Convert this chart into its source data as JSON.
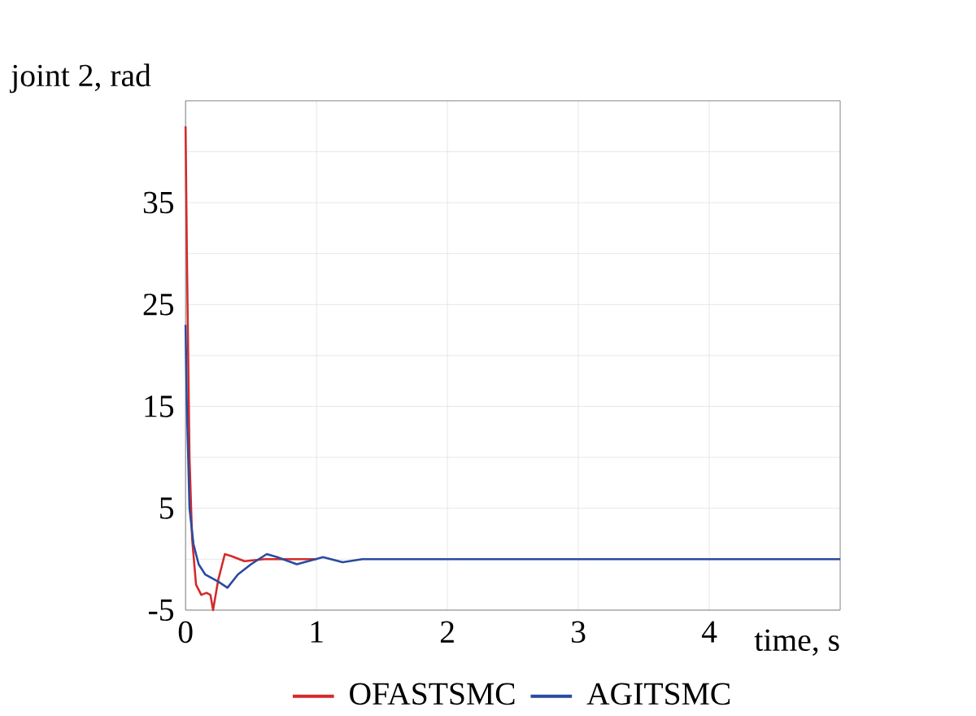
{
  "chart_data": {
    "type": "line",
    "xlabel": "time, s",
    "ylabel": "joint 2, rad",
    "xlim": [
      0,
      5
    ],
    "ylim": [
      -5,
      45
    ],
    "xticks": [
      0,
      1,
      2,
      3,
      4
    ],
    "yticks": [
      -5,
      {
        "value": 0,
        "label": null
      },
      5,
      {
        "value": 10,
        "label": null
      },
      15,
      {
        "value": 20,
        "label": null
      },
      25,
      {
        "value": 30,
        "label": null
      },
      35,
      {
        "value": 40,
        "label": null
      }
    ],
    "grid": true,
    "legend": "bottom",
    "line_style": "solid",
    "marker": "none",
    "series": [
      {
        "name": "OFASTSMC",
        "color": "#d42a2a",
        "x": [
          0,
          0.01,
          0.03,
          0.05,
          0.08,
          0.12,
          0.16,
          0.19,
          0.21,
          0.25,
          0.3,
          0.35,
          0.45,
          0.6,
          1
        ],
        "values": [
          42.5,
          30,
          10,
          2,
          -2.5,
          -3.5,
          -3.3,
          -3.5,
          -5,
          -2,
          0.5,
          0.3,
          -0.2,
          0,
          0
        ]
      },
      {
        "name": "AGITSMC",
        "color": "#2a4aa0",
        "x": [
          0,
          0.01,
          0.03,
          0.06,
          0.1,
          0.15,
          0.25,
          0.32,
          0.4,
          0.5,
          0.62,
          0.7,
          0.85,
          1.05,
          1.2,
          1.35,
          2,
          3,
          4,
          5
        ],
        "values": [
          23,
          15,
          5,
          1.5,
          -0.5,
          -1.5,
          -2.2,
          -2.8,
          -1.5,
          -0.5,
          0.5,
          0.2,
          -0.5,
          0.2,
          -0.3,
          0,
          0,
          0,
          0,
          0
        ]
      }
    ]
  }
}
